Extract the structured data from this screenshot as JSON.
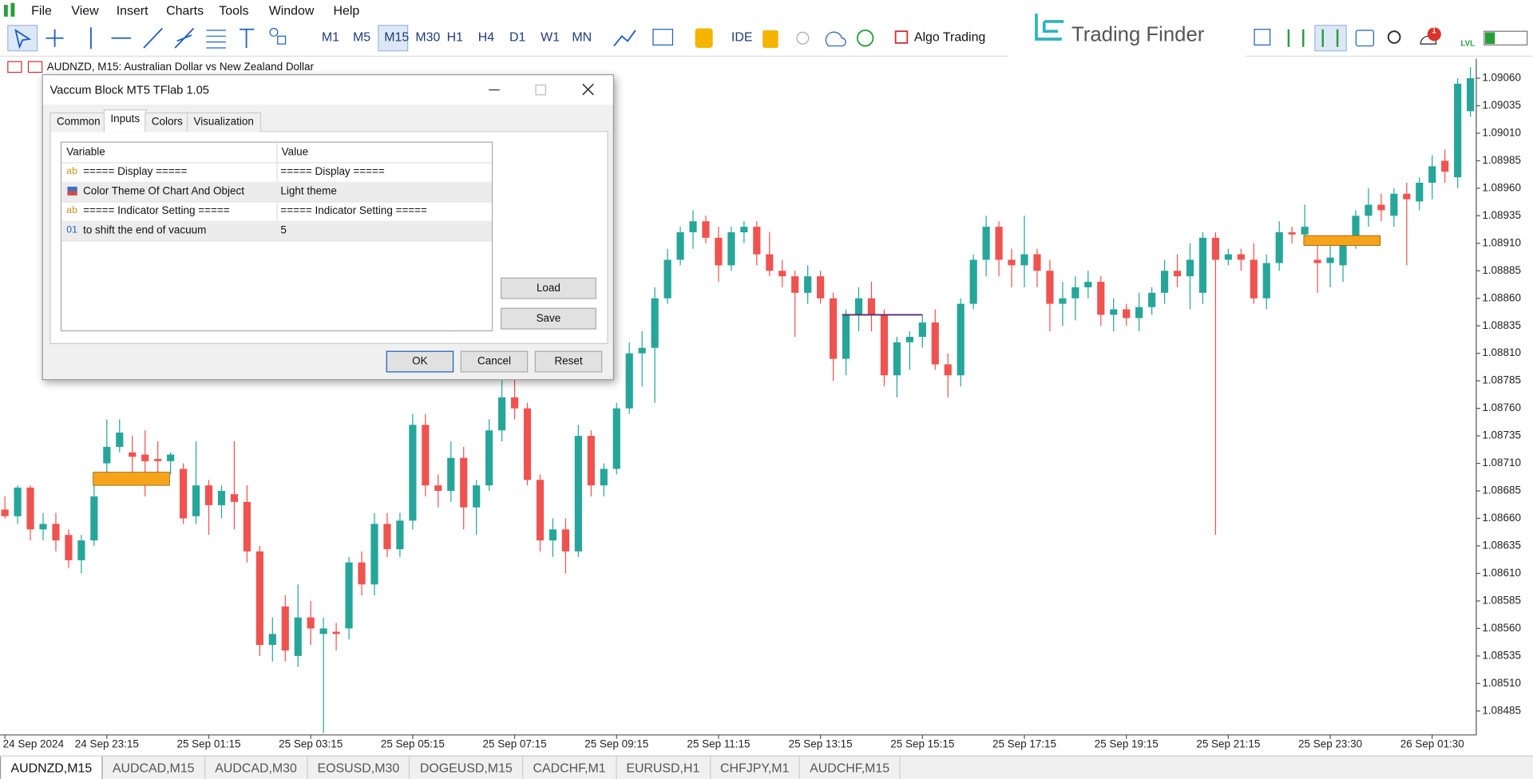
{
  "menu": [
    "File",
    "View",
    "Insert",
    "Charts",
    "Tools",
    "Window",
    "Help"
  ],
  "toolbar": {
    "timeframes": [
      "M1",
      "M5",
      "M15",
      "M30",
      "H1",
      "H4",
      "D1",
      "W1",
      "MN"
    ],
    "ide": "IDE",
    "algo_trading": "Algo Trading",
    "brand": "Trading Finder",
    "notifications": 1,
    "level": "LVL"
  },
  "chart_header": "AUDNZD, M15:  Australian Dollar vs New Zealand Dollar",
  "chart_data": {
    "type": "candlestick",
    "open": [
      1.08668,
      1.08662,
      1.08688,
      1.0865,
      1.08655,
      1.08645,
      1.08622,
      1.0864,
      1.0871,
      1.08725,
      1.0872,
      1.08718,
      1.08714,
      1.08712,
      1.08705,
      1.08662,
      1.0869,
      1.08672,
      1.08682,
      1.08675,
      1.0863,
      1.08545,
      1.0858,
      1.08535,
      1.0857,
      1.08555,
      1.08557,
      1.0856,
      1.0862,
      1.086,
      1.08655,
      1.08632,
      1.08658,
      1.08745,
      1.0869,
      1.08685,
      1.08715,
      1.0867,
      1.0869,
      1.0874,
      1.0877,
      1.0876,
      1.08695,
      1.0864,
      1.0865,
      1.0863,
      1.08735,
      1.0869,
      1.08705,
      1.0876,
      1.0881,
      1.08815,
      1.0886,
      1.08895,
      1.0892,
      1.0893,
      1.08915,
      1.0889,
      1.0892,
      1.08925,
      1.089,
      1.08885,
      1.0888,
      1.08865,
      1.0888,
      1.0886,
      1.08805,
      1.08845,
      1.0886,
      1.08845,
      1.0879,
      1.0882,
      1.08825,
      1.08838,
      1.088,
      1.0879,
      1.08855,
      1.08895,
      1.08925,
      1.08895,
      1.0889,
      1.089,
      1.08885,
      1.08855,
      1.0886,
      1.0887,
      1.08875,
      1.08845,
      1.0885,
      1.08842,
      1.08852,
      1.08865,
      1.08885,
      1.0888,
      1.08865,
      1.08915,
      1.08895,
      1.089,
      1.08895,
      1.0886,
      1.08892,
      1.0892,
      1.08918,
      1.08895,
      1.08892,
      1.0889,
      1.08915,
      1.08935,
      1.08945,
      1.08935,
      1.08955,
      1.08948,
      1.08965,
      1.08985,
      1.0897,
      1.0903
    ],
    "high": [
      1.0868,
      1.0869,
      1.0869,
      1.08665,
      1.08665,
      1.0865,
      1.08645,
      1.0869,
      1.0875,
      1.0875,
      1.08735,
      1.0874,
      1.0873,
      1.0872,
      1.0871,
      1.0873,
      1.08695,
      1.0869,
      1.0873,
      1.0869,
      1.08635,
      1.0857,
      1.0859,
      1.086,
      1.08585,
      1.0857,
      1.08565,
      1.08625,
      1.0863,
      1.08665,
      1.08665,
      1.08665,
      1.08755,
      1.08755,
      1.087,
      1.0873,
      1.08725,
      1.08695,
      1.0875,
      1.088,
      1.0879,
      1.08765,
      1.087,
      1.0866,
      1.0866,
      1.08745,
      1.0874,
      1.0871,
      1.08765,
      1.0882,
      1.0883,
      1.0887,
      1.08905,
      1.08925,
      1.0894,
      1.08935,
      1.08925,
      1.08925,
      1.0893,
      1.0893,
      1.0892,
      1.08895,
      1.08885,
      1.0889,
      1.08885,
      1.08865,
      1.0885,
      1.0887,
      1.08875,
      1.0885,
      1.08825,
      1.0883,
      1.08845,
      1.0885,
      1.0881,
      1.0886,
      1.089,
      1.08935,
      1.0893,
      1.08905,
      1.08935,
      1.08905,
      1.08895,
      1.08875,
      1.0888,
      1.08885,
      1.0888,
      1.0886,
      1.08855,
      1.08865,
      1.0887,
      1.08895,
      1.089,
      1.0891,
      1.0892,
      1.0892,
      1.08905,
      1.08905,
      1.0891,
      1.089,
      1.0893,
      1.08925,
      1.08945,
      1.0891,
      1.08915,
      1.08915,
      1.0894,
      1.0896,
      1.08955,
      1.0896,
      1.08965,
      1.0897,
      1.0899,
      1.08995,
      1.0906,
      1.0907
    ],
    "low": [
      1.0866,
      1.08655,
      1.0864,
      1.0864,
      1.0863,
      1.08615,
      1.0861,
      1.08635,
      1.087,
      1.0872,
      1.087,
      1.0868,
      1.087,
      1.087,
      1.08655,
      1.08655,
      1.08645,
      1.0866,
      1.0865,
      1.0862,
      1.08535,
      1.0853,
      1.0853,
      1.08525,
      1.08545,
      1.08465,
      1.0854,
      1.0855,
      1.0859,
      1.0859,
      1.08625,
      1.08625,
      1.0865,
      1.0868,
      1.0867,
      1.08675,
      1.0865,
      1.08645,
      1.08685,
      1.0873,
      1.0875,
      1.0869,
      1.0863,
      1.08625,
      1.0861,
      1.08625,
      1.0868,
      1.0868,
      1.087,
      1.08755,
      1.0878,
      1.08765,
      1.08855,
      1.0889,
      1.08905,
      1.0891,
      1.08875,
      1.08885,
      1.0891,
      1.0889,
      1.0888,
      1.0887,
      1.08825,
      1.08855,
      1.08855,
      1.08785,
      1.0879,
      1.0883,
      1.0883,
      1.0878,
      1.0877,
      1.08795,
      1.08815,
      1.08795,
      1.0877,
      1.0878,
      1.0885,
      1.0888,
      1.0888,
      1.0887,
      1.0887,
      1.0887,
      1.0883,
      1.08835,
      1.0884,
      1.0886,
      1.08835,
      1.0883,
      1.08835,
      1.0883,
      1.08845,
      1.08855,
      1.0887,
      1.0885,
      1.08855,
      1.08645,
      1.0889,
      1.08885,
      1.08855,
      1.0885,
      1.08885,
      1.0891,
      1.0891,
      1.08865,
      1.0887,
      1.08875,
      1.08905,
      1.08925,
      1.0893,
      1.08925,
      1.0889,
      1.0894,
      1.0895,
      1.08965,
      1.0896,
      1.09025
    ],
    "close": [
      1.08662,
      1.08688,
      1.0865,
      1.08655,
      1.0864,
      1.08622,
      1.0864,
      1.0868,
      1.08725,
      1.08738,
      1.08716,
      1.08712,
      1.08712,
      1.08718,
      1.0866,
      1.0869,
      1.08672,
      1.08685,
      1.08675,
      1.0863,
      1.08545,
      1.08555,
      1.0854,
      1.0857,
      1.0856,
      1.0856,
      1.08555,
      1.0862,
      1.086,
      1.08655,
      1.08632,
      1.08658,
      1.08745,
      1.0869,
      1.08685,
      1.08715,
      1.0867,
      1.0869,
      1.0874,
      1.0877,
      1.0876,
      1.08695,
      1.0864,
      1.0865,
      1.0863,
      1.08735,
      1.0869,
      1.08705,
      1.0876,
      1.0881,
      1.08815,
      1.0886,
      1.08895,
      1.0892,
      1.0893,
      1.08915,
      1.0889,
      1.0892,
      1.08925,
      1.089,
      1.08885,
      1.0888,
      1.08865,
      1.0888,
      1.0886,
      1.08805,
      1.08845,
      1.0886,
      1.08845,
      1.0879,
      1.0882,
      1.08825,
      1.08838,
      1.088,
      1.0879,
      1.08855,
      1.08895,
      1.08925,
      1.08895,
      1.0889,
      1.089,
      1.08885,
      1.08855,
      1.0886,
      1.0887,
      1.08875,
      1.08845,
      1.0885,
      1.08842,
      1.08852,
      1.08865,
      1.08885,
      1.0888,
      1.08895,
      1.08915,
      1.08895,
      1.089,
      1.08895,
      1.0886,
      1.08892,
      1.0892,
      1.08918,
      1.08925,
      1.08892,
      1.08897,
      1.08915,
      1.08935,
      1.08945,
      1.0894,
      1.08955,
      1.0895,
      1.08965,
      1.0898,
      1.08975,
      1.09055,
      1.0906
    ],
    "up_color": "#26a69a",
    "down_color": "#ef5350",
    "ylim": [
      1.08465,
      1.09076
    ],
    "yticks": [
      {
        "value": 1.0906,
        "label": "1.09060"
      },
      {
        "value": 1.09035,
        "label": "1.09035"
      },
      {
        "value": 1.0901,
        "label": "1.09010"
      },
      1.08985,
      {
        "value": 1.0896,
        "label": "1.08960"
      },
      1.08935,
      {
        "value": 1.0891,
        "label": "1.08910"
      },
      1.08885,
      {
        "value": 1.0886,
        "label": "1.08860"
      },
      1.08835,
      {
        "value": 1.0881,
        "label": "1.08810"
      },
      1.08785,
      {
        "value": 1.0876,
        "label": "1.08760"
      },
      1.08735,
      {
        "value": 1.0871,
        "label": "1.08710"
      },
      1.08685,
      {
        "value": 1.0866,
        "label": "1.08660"
      },
      1.08635,
      {
        "value": 1.0861,
        "label": "1.08610"
      },
      1.08585,
      {
        "value": 1.0856,
        "label": "1.08560"
      },
      1.08535,
      {
        "value": 1.0851,
        "label": "1.08510"
      },
      1.08485
    ],
    "x_labels": [
      "24 Sep 2024",
      "24 Sep 23:15",
      "25 Sep 01:15",
      "25 Sep 03:15",
      "25 Sep 05:15",
      "25 Sep 07:15",
      "25 Sep 09:15",
      "25 Sep 11:15",
      "25 Sep 13:15",
      "25 Sep 15:15",
      "25 Sep 17:15",
      "25 Sep 19:15",
      "25 Sep 21:15",
      "25 Sep 23:30",
      "26 Sep 01:30"
    ],
    "vacuum_zones": [
      {
        "top": 1.08702,
        "bottom": 1.0869,
        "color": "#f5a31a"
      },
      {
        "top": 1.08917,
        "bottom": 1.08908,
        "color": "#f5a31a"
      }
    ],
    "vacuum_lines": [
      {
        "price": 1.08845,
        "color": "#5b2a6e"
      }
    ]
  },
  "dialog": {
    "title": "Vaccum Block MT5 TFlab 1.05",
    "tabs": [
      "Common",
      "Inputs",
      "Colors",
      "Visualization"
    ],
    "table": {
      "header": [
        "Variable",
        "Value"
      ],
      "rows": [
        {
          "icon": "ab",
          "variable": "===== Display =====",
          "value": "===== Display ====="
        },
        {
          "icon": "",
          "variable": "Color Theme Of Chart And Object",
          "value": "Light theme"
        },
        {
          "icon": "ab",
          "variable": "===== Indicator Setting =====",
          "value": "===== Indicator Setting ====="
        },
        {
          "icon": "01",
          "variable": "to shift the end of vacuum",
          "value": 5
        }
      ]
    },
    "side_buttons": [
      "Load",
      "Save"
    ],
    "buttons": [
      "OK",
      "Cancel",
      "Reset"
    ]
  },
  "symbol_tabs": [
    "AUDNZD,M15",
    "AUDCAD,M15",
    "AUDCAD,M30",
    "EOSUSD,M30",
    "DOGEUSD,M15",
    "CADCHF,M1",
    "EURUSD,H1",
    "CHFJPY,M1",
    "AUDCHF,M15"
  ]
}
